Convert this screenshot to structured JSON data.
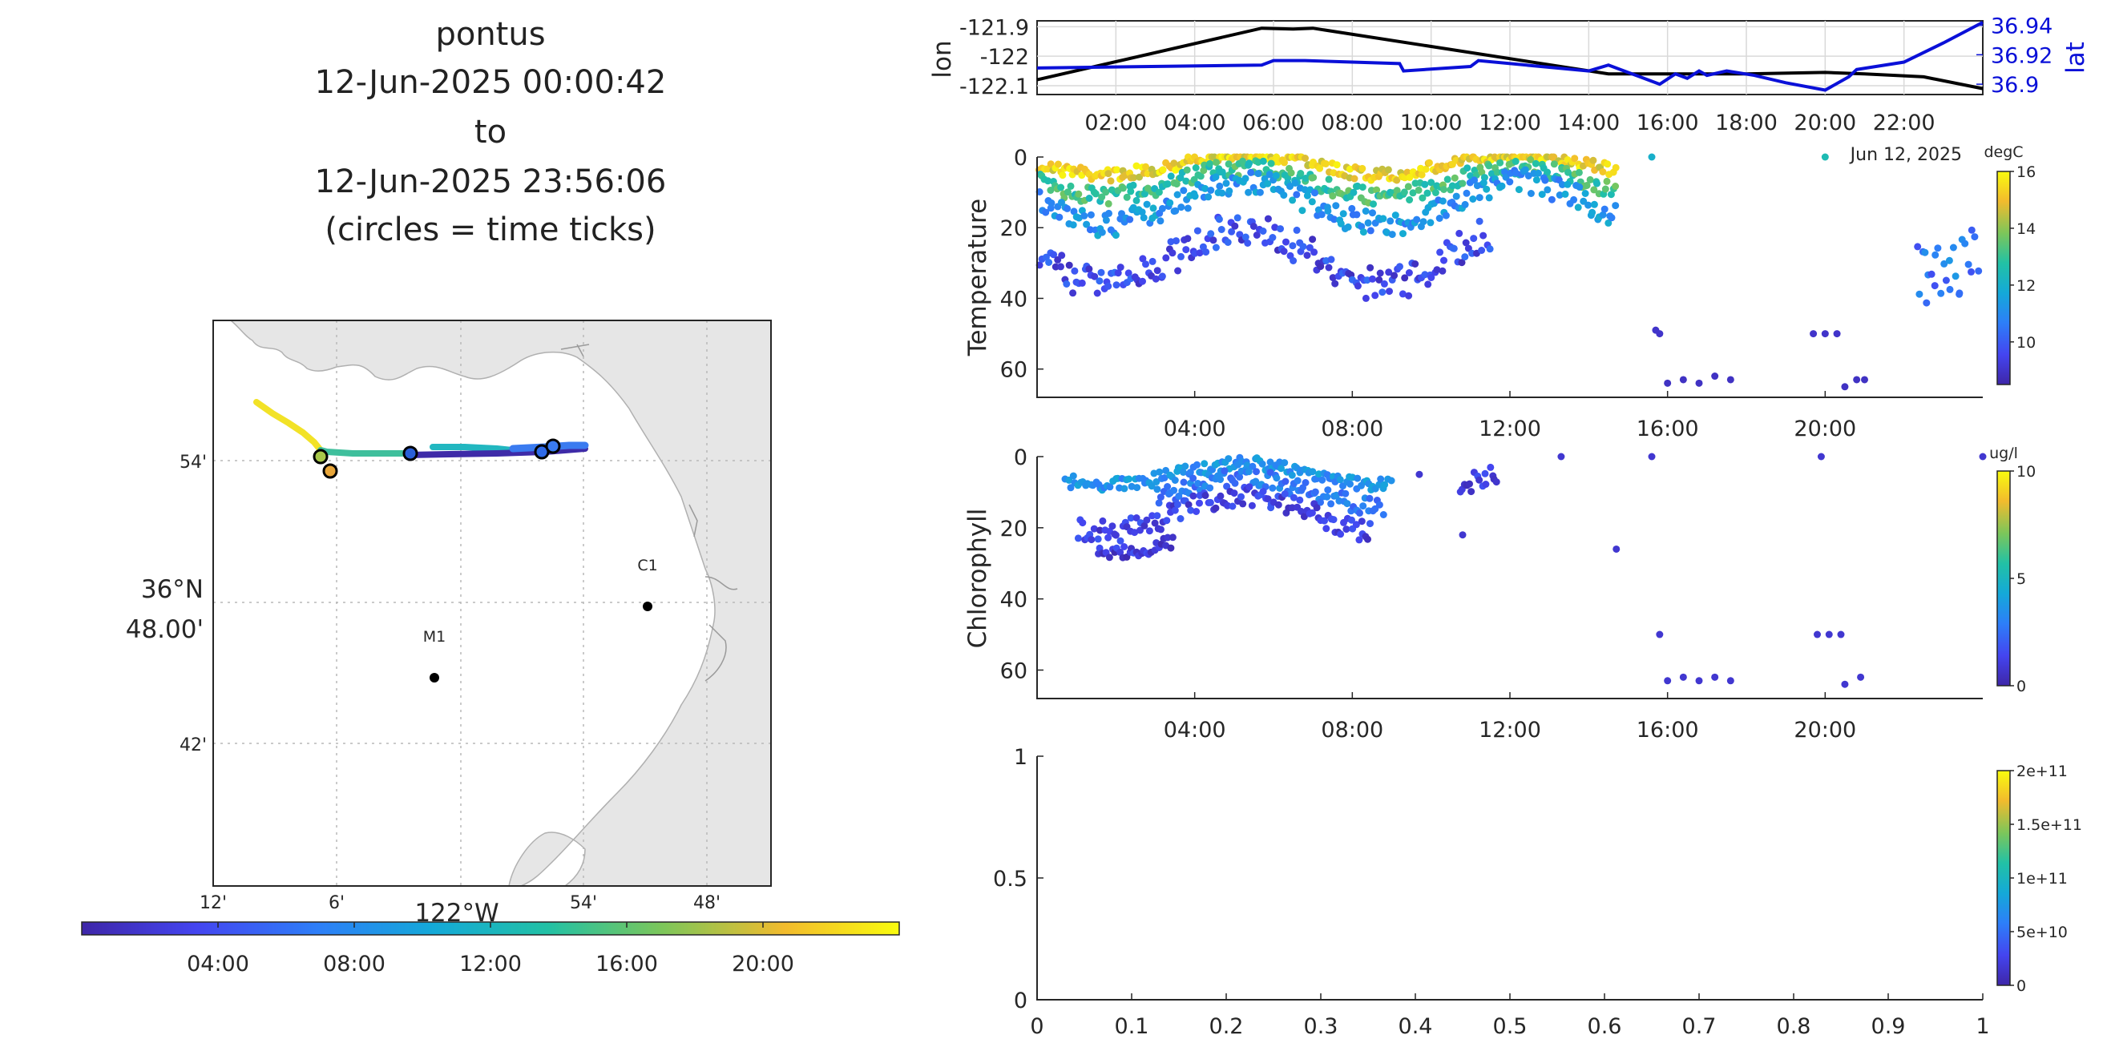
{
  "figure": {
    "title_lines": [
      "pontus",
      "12-Jun-2025 00:00:42",
      "to",
      "12-Jun-2025 23:56:06",
      "(circles = time ticks)"
    ]
  },
  "colors": {
    "track_low": "#3e26a8",
    "track_high": "#f9fb0e",
    "lon_line": "#000000",
    "lat_line": "#0a10d8",
    "land": "#e6e6e6",
    "grid": "#b8b8b8"
  },
  "map": {
    "lat_ticks": [
      "54'",
      "42'"
    ],
    "lat_center_label": [
      "36°N",
      "48.00'"
    ],
    "lon_ticks": [
      "12'",
      "6'",
      "54'",
      "48'"
    ],
    "lon_center_label": "122°W",
    "stations": [
      {
        "name": "C1"
      },
      {
        "name": "M1"
      }
    ],
    "colorbar_ticks": [
      "04:00",
      "08:00",
      "12:00",
      "16:00",
      "20:00"
    ]
  },
  "chart_data": [
    {
      "type": "line",
      "name": "position",
      "ylabel_left": "lon",
      "ylabel_right": "lat",
      "x_ticks": [
        "02:00",
        "04:00",
        "06:00",
        "08:00",
        "10:00",
        "12:00",
        "14:00",
        "16:00",
        "18:00",
        "20:00",
        "22:00"
      ],
      "xlim_hours": [
        0,
        24
      ],
      "lon_ylim": [
        -122.13,
        -121.88
      ],
      "lon_ticks": [
        "-121.9",
        "-122",
        "-122.1"
      ],
      "lat_ylim": [
        36.893,
        36.943
      ],
      "lat_ticks": [
        "36.94",
        "36.92",
        "36.9"
      ],
      "series": [
        {
          "name": "lon",
          "x": [
            0,
            5.7,
            6.5,
            7.0,
            14.5,
            16.0,
            18.0,
            20.0,
            21.0,
            22.5,
            24.0
          ],
          "values": [
            -122.08,
            -121.905,
            -121.908,
            -121.905,
            -122.06,
            -122.06,
            -122.06,
            -122.055,
            -122.06,
            -122.07,
            -122.11
          ]
        },
        {
          "name": "lat",
          "x": [
            0,
            5.7,
            6.0,
            6.8,
            9.2,
            9.3,
            11.0,
            11.2,
            14.0,
            14.5,
            15.3,
            15.8,
            16.2,
            16.5,
            16.8,
            17.0,
            17.5,
            18.2,
            19.0,
            20.0,
            20.6,
            20.8,
            22.0,
            23.0,
            24.0
          ],
          "values": [
            36.911,
            36.913,
            36.916,
            36.916,
            36.914,
            36.909,
            36.912,
            36.916,
            36.909,
            36.913,
            36.905,
            36.9,
            36.907,
            36.904,
            36.909,
            36.906,
            36.909,
            36.906,
            36.901,
            36.896,
            36.905,
            36.91,
            36.915,
            36.928,
            36.942
          ]
        }
      ]
    },
    {
      "type": "scatter",
      "name": "temperature",
      "ylabel": "Temperature",
      "xlim_hours": [
        0,
        24
      ],
      "x_ticks": [
        "04:00",
        "08:00",
        "12:00",
        "16:00",
        "20:00"
      ],
      "ylim": [
        0,
        68
      ],
      "y_ticks": [
        "0",
        "20",
        "40",
        "60"
      ],
      "color_units": "degC",
      "clim": [
        8.5,
        16
      ],
      "cbar_ticks": [
        "16",
        "14",
        "12",
        "10"
      ],
      "overlap_text": "Jun 12, 2025",
      "groups": [
        {
          "x_start": 0.05,
          "x_end": 14.7,
          "depth_base": 2,
          "depth_amp": 3,
          "temp": 15.2
        },
        {
          "x_start": 0.05,
          "x_end": 14.7,
          "depth_base": 7,
          "depth_amp": 4,
          "temp": 13.0
        },
        {
          "x_start": 0.05,
          "x_end": 14.7,
          "depth_base": 13,
          "depth_amp": 6,
          "temp": 11.2
        },
        {
          "x_start": 0.05,
          "x_end": 11.5,
          "depth_base": 28,
          "depth_amp": 8,
          "temp": 9.6
        },
        {
          "x_start": 22.3,
          "x_end": 23.9,
          "depth_base": 20,
          "depth_amp": 14,
          "temp": 10.5
        }
      ],
      "extra_points": [
        {
          "x": 15.6,
          "depth": 0,
          "temp": 12.0
        },
        {
          "x": 20.0,
          "depth": 0,
          "temp": 12.5
        },
        {
          "x": 15.7,
          "depth": 49,
          "temp": 9.0
        },
        {
          "x": 15.8,
          "depth": 50,
          "temp": 9.0
        },
        {
          "x": 19.7,
          "depth": 50,
          "temp": 9.0
        },
        {
          "x": 20.0,
          "depth": 50,
          "temp": 9.0
        },
        {
          "x": 20.3,
          "depth": 50,
          "temp": 9.0
        },
        {
          "x": 16.0,
          "depth": 64,
          "temp": 8.9
        },
        {
          "x": 16.4,
          "depth": 63,
          "temp": 8.9
        },
        {
          "x": 16.8,
          "depth": 64,
          "temp": 8.9
        },
        {
          "x": 17.2,
          "depth": 62,
          "temp": 8.9
        },
        {
          "x": 17.6,
          "depth": 63,
          "temp": 8.9
        },
        {
          "x": 20.5,
          "depth": 65,
          "temp": 8.9
        },
        {
          "x": 20.8,
          "depth": 63,
          "temp": 8.9
        },
        {
          "x": 21.0,
          "depth": 63,
          "temp": 8.9
        }
      ]
    },
    {
      "type": "scatter",
      "name": "chlorophyll",
      "ylabel": "Chlorophyll",
      "xlim_hours": [
        0,
        24
      ],
      "x_ticks": [
        "04:00",
        "08:00",
        "12:00",
        "16:00",
        "20:00"
      ],
      "ylim": [
        0,
        68
      ],
      "y_ticks": [
        "0",
        "20",
        "40",
        "60"
      ],
      "color_units": "ug/l",
      "clim": [
        0,
        10
      ],
      "cbar_ticks": [
        "10",
        "5",
        "0"
      ],
      "groups": [
        {
          "x_start": 0.7,
          "x_end": 9.0,
          "depth_base": 5,
          "depth_amp": 3,
          "chl": 3.5
        },
        {
          "x_start": 3.0,
          "x_end": 8.8,
          "depth_base": 10,
          "depth_amp": 4,
          "chl": 2.8
        },
        {
          "x_start": 1.0,
          "x_end": 8.5,
          "depth_base": 16,
          "depth_amp": 5,
          "chl": 1.2
        },
        {
          "x_start": 1.5,
          "x_end": 3.5,
          "depth_base": 24,
          "depth_amp": 3,
          "chl": 1.0
        },
        {
          "x_start": 10.7,
          "x_end": 11.7,
          "depth_base": 10,
          "depth_amp": 5,
          "chl": 1.0
        }
      ],
      "extra_points": [
        {
          "x": 9.7,
          "depth": 5,
          "chl": 0.8
        },
        {
          "x": 13.3,
          "depth": 0,
          "chl": 0.8
        },
        {
          "x": 15.6,
          "depth": 0,
          "chl": 0.8
        },
        {
          "x": 19.9,
          "depth": 0,
          "chl": 0.8
        },
        {
          "x": 24.0,
          "depth": 0,
          "chl": 0.8
        },
        {
          "x": 14.7,
          "depth": 26,
          "chl": 0.8
        },
        {
          "x": 10.8,
          "depth": 22,
          "chl": 0.8
        },
        {
          "x": 15.8,
          "depth": 50,
          "chl": 0.8
        },
        {
          "x": 19.8,
          "depth": 50,
          "chl": 0.8
        },
        {
          "x": 20.1,
          "depth": 50,
          "chl": 0.8
        },
        {
          "x": 20.4,
          "depth": 50,
          "chl": 0.8
        },
        {
          "x": 16.0,
          "depth": 63,
          "chl": 0.8
        },
        {
          "x": 16.4,
          "depth": 62,
          "chl": 0.8
        },
        {
          "x": 16.8,
          "depth": 63,
          "chl": 0.8
        },
        {
          "x": 17.2,
          "depth": 62,
          "chl": 0.8
        },
        {
          "x": 17.6,
          "depth": 63,
          "chl": 0.8
        },
        {
          "x": 20.5,
          "depth": 64,
          "chl": 0.8
        },
        {
          "x": 20.9,
          "depth": 62,
          "chl": 0.8
        }
      ]
    },
    {
      "type": "scatter",
      "name": "empty-panel",
      "xlim": [
        0,
        1
      ],
      "ylim": [
        0,
        1
      ],
      "x_ticks": [
        "0",
        "0.1",
        "0.2",
        "0.3",
        "0.4",
        "0.5",
        "0.6",
        "0.7",
        "0.8",
        "0.9",
        "1"
      ],
      "y_ticks": [
        "1",
        "0.5",
        "0"
      ],
      "cbar_ticks": [
        "2e+11",
        "1.5e+11",
        "1e+11",
        "5e+10",
        "0"
      ],
      "clim": [
        0,
        200000000000
      ]
    }
  ]
}
